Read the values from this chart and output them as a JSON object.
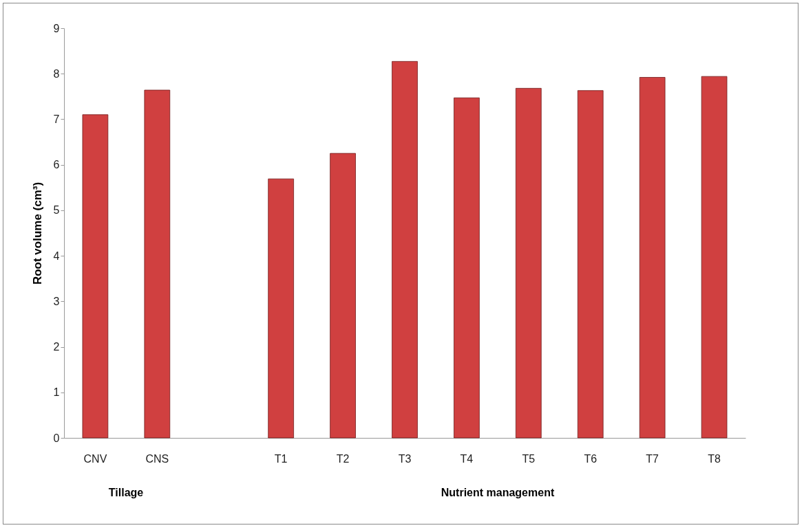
{
  "chart_data": {
    "type": "bar",
    "ylabel": "Root volume (cm³)",
    "categories": [
      "CNV",
      "CNS",
      null,
      "T1",
      "T2",
      "T3",
      "T4",
      "T5",
      "T6",
      "T7",
      "T8"
    ],
    "values": [
      7.1,
      7.64,
      null,
      5.69,
      6.25,
      8.27,
      7.47,
      7.68,
      7.63,
      7.92,
      7.94
    ],
    "color": "#d04040",
    "ylim": [
      0,
      9
    ],
    "yticks": [
      0,
      1,
      2,
      3,
      4,
      5,
      6,
      7,
      8,
      9
    ],
    "grid": false,
    "annotations": [
      "Tillage",
      "Nutrient management"
    ]
  }
}
